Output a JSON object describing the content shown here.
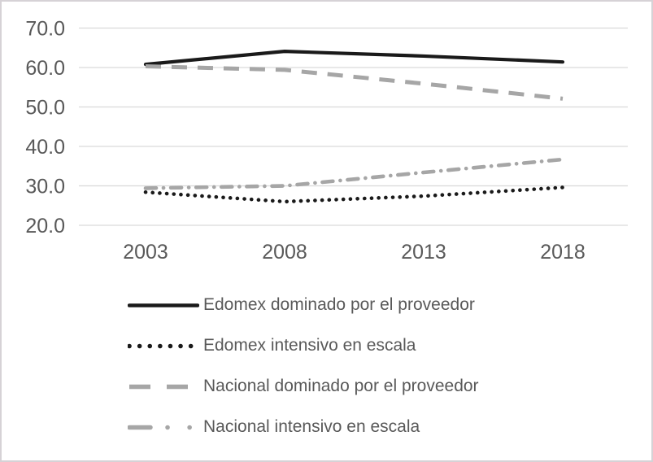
{
  "figure": {
    "background": "#ffffff",
    "border_color": "#d6d2d6"
  },
  "chart_data": {
    "type": "line",
    "x": [
      "2003",
      "2008",
      "2013",
      "2018"
    ],
    "yticks": [
      "70.0",
      "60.0",
      "50.0",
      "40.0",
      "30.0",
      "20.0"
    ],
    "ylim": [
      20,
      70
    ],
    "grid": true,
    "gridline_color": "#d9d9d9",
    "axis_label_color": "#595959",
    "legend_position": "bottom-left",
    "series": [
      {
        "name": "Edomex dominado por el proveedor",
        "style": "solid",
        "color": "#1a1a1a",
        "values": [
          60.8,
          64.1,
          62.9,
          61.4
        ]
      },
      {
        "name": "Edomex intensivo en escala",
        "style": "dotted",
        "color": "#1a1a1a",
        "values": [
          28.4,
          26.0,
          27.4,
          29.6
        ]
      },
      {
        "name": "Nacional dominado por el proveedor",
        "style": "dashed",
        "color": "#a6a6a6",
        "values": [
          60.3,
          59.4,
          55.9,
          52.1
        ]
      },
      {
        "name": "Nacional intensivo en escala",
        "style": "dash-dot",
        "color": "#a6a6a6",
        "values": [
          29.4,
          30.0,
          33.4,
          36.7
        ]
      }
    ]
  }
}
